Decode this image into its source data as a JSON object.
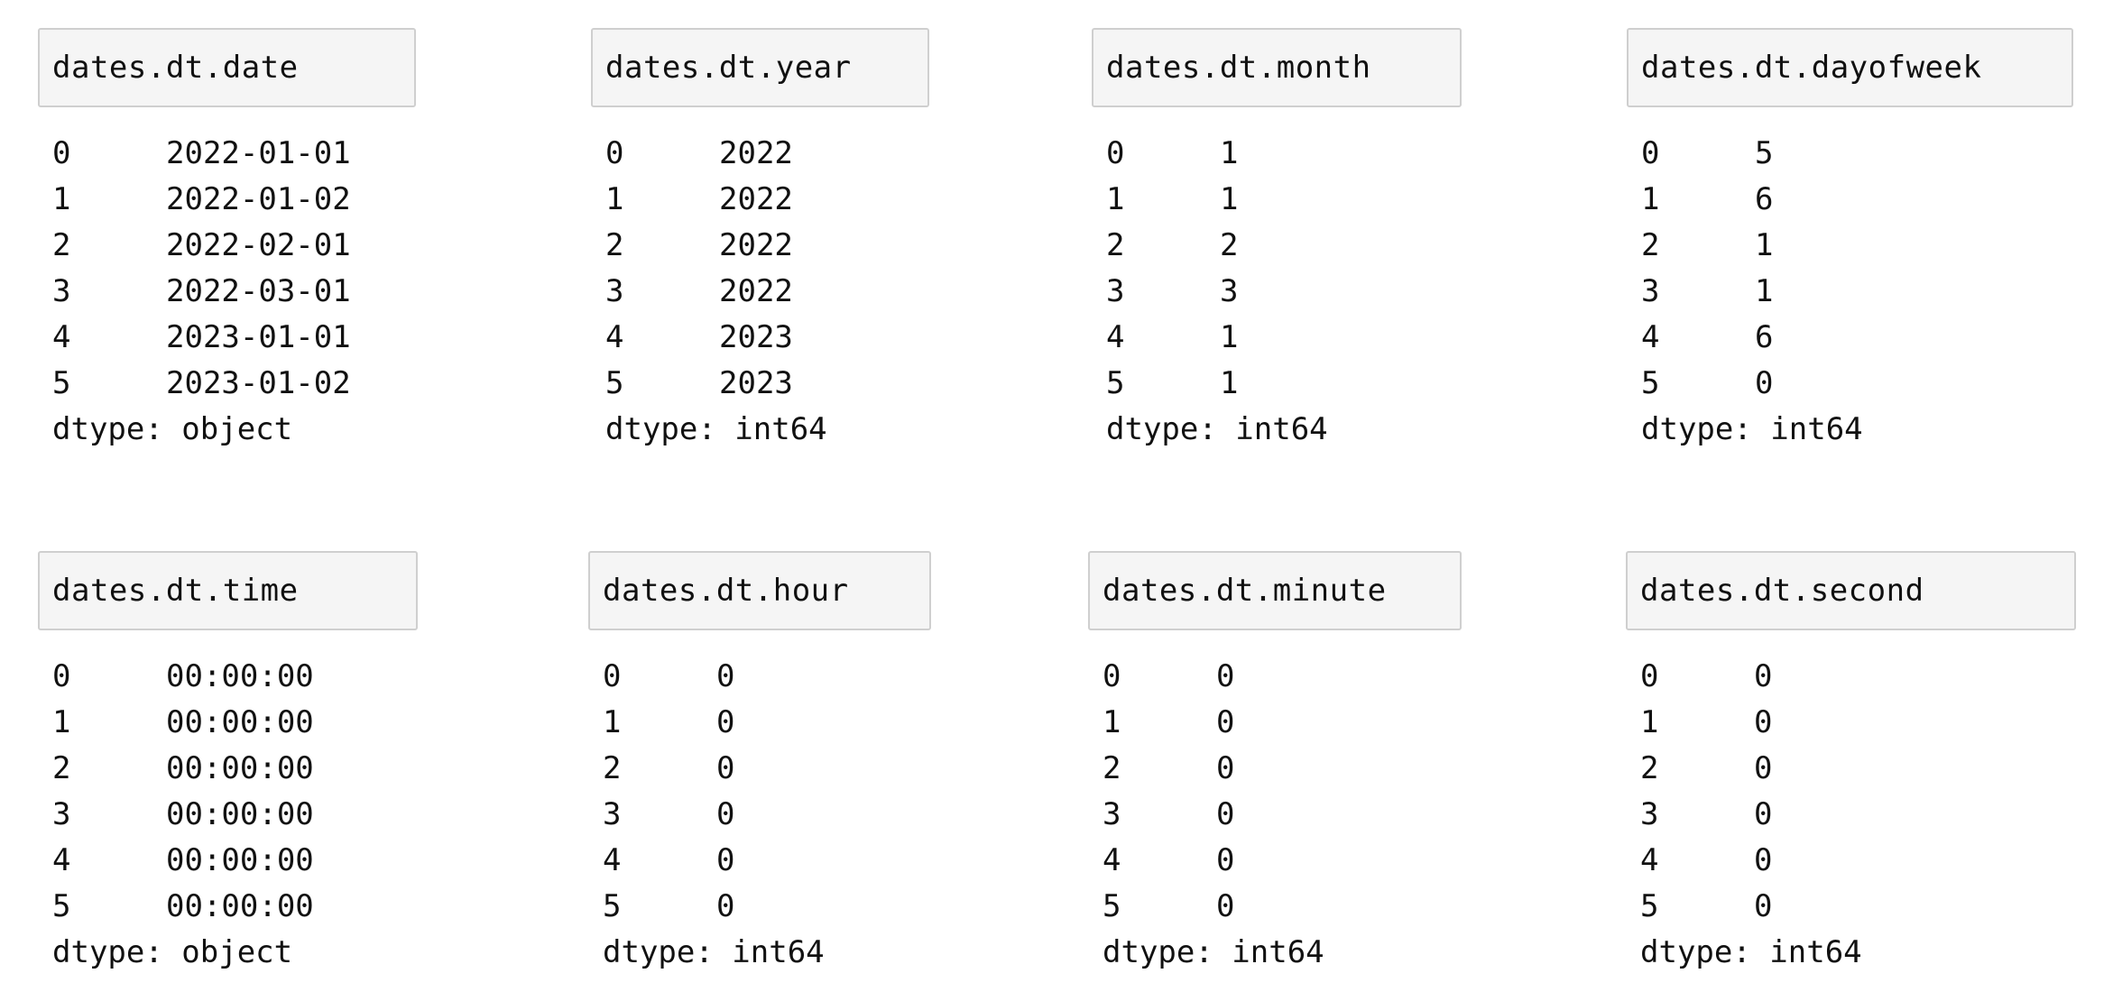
{
  "panels": [
    {
      "title": "dates.dt.date",
      "rows": [
        {
          "index": "0",
          "value": "2022-01-01"
        },
        {
          "index": "1",
          "value": "2022-01-02"
        },
        {
          "index": "2",
          "value": "2022-02-01"
        },
        {
          "index": "3",
          "value": "2022-03-01"
        },
        {
          "index": "4",
          "value": "2023-01-01"
        },
        {
          "index": "5",
          "value": "2023-01-02"
        }
      ],
      "dtype": "dtype: object"
    },
    {
      "title": "dates.dt.year",
      "rows": [
        {
          "index": "0",
          "value": "2022"
        },
        {
          "index": "1",
          "value": "2022"
        },
        {
          "index": "2",
          "value": "2022"
        },
        {
          "index": "3",
          "value": "2022"
        },
        {
          "index": "4",
          "value": "2023"
        },
        {
          "index": "5",
          "value": "2023"
        }
      ],
      "dtype": "dtype: int64"
    },
    {
      "title": "dates.dt.month",
      "rows": [
        {
          "index": "0",
          "value": "1"
        },
        {
          "index": "1",
          "value": "1"
        },
        {
          "index": "2",
          "value": "2"
        },
        {
          "index": "3",
          "value": "3"
        },
        {
          "index": "4",
          "value": "1"
        },
        {
          "index": "5",
          "value": "1"
        }
      ],
      "dtype": "dtype: int64"
    },
    {
      "title": "dates.dt.dayofweek",
      "rows": [
        {
          "index": "0",
          "value": "5"
        },
        {
          "index": "1",
          "value": "6"
        },
        {
          "index": "2",
          "value": "1"
        },
        {
          "index": "3",
          "value": "1"
        },
        {
          "index": "4",
          "value": "6"
        },
        {
          "index": "5",
          "value": "0"
        }
      ],
      "dtype": "dtype: int64"
    },
    {
      "title": "dates.dt.time",
      "rows": [
        {
          "index": "0",
          "value": "00:00:00"
        },
        {
          "index": "1",
          "value": "00:00:00"
        },
        {
          "index": "2",
          "value": "00:00:00"
        },
        {
          "index": "3",
          "value": "00:00:00"
        },
        {
          "index": "4",
          "value": "00:00:00"
        },
        {
          "index": "5",
          "value": "00:00:00"
        }
      ],
      "dtype": "dtype: object"
    },
    {
      "title": "dates.dt.hour",
      "rows": [
        {
          "index": "0",
          "value": "0"
        },
        {
          "index": "1",
          "value": "0"
        },
        {
          "index": "2",
          "value": "0"
        },
        {
          "index": "3",
          "value": "0"
        },
        {
          "index": "4",
          "value": "0"
        },
        {
          "index": "5",
          "value": "0"
        }
      ],
      "dtype": "dtype: int64"
    },
    {
      "title": "dates.dt.minute",
      "rows": [
        {
          "index": "0",
          "value": "0"
        },
        {
          "index": "1",
          "value": "0"
        },
        {
          "index": "2",
          "value": "0"
        },
        {
          "index": "3",
          "value": "0"
        },
        {
          "index": "4",
          "value": "0"
        },
        {
          "index": "5",
          "value": "0"
        }
      ],
      "dtype": "dtype: int64"
    },
    {
      "title": "dates.dt.second",
      "rows": [
        {
          "index": "0",
          "value": "0"
        },
        {
          "index": "1",
          "value": "0"
        },
        {
          "index": "2",
          "value": "0"
        },
        {
          "index": "3",
          "value": "0"
        },
        {
          "index": "4",
          "value": "0"
        },
        {
          "index": "5",
          "value": "0"
        }
      ],
      "dtype": "dtype: int64"
    }
  ]
}
